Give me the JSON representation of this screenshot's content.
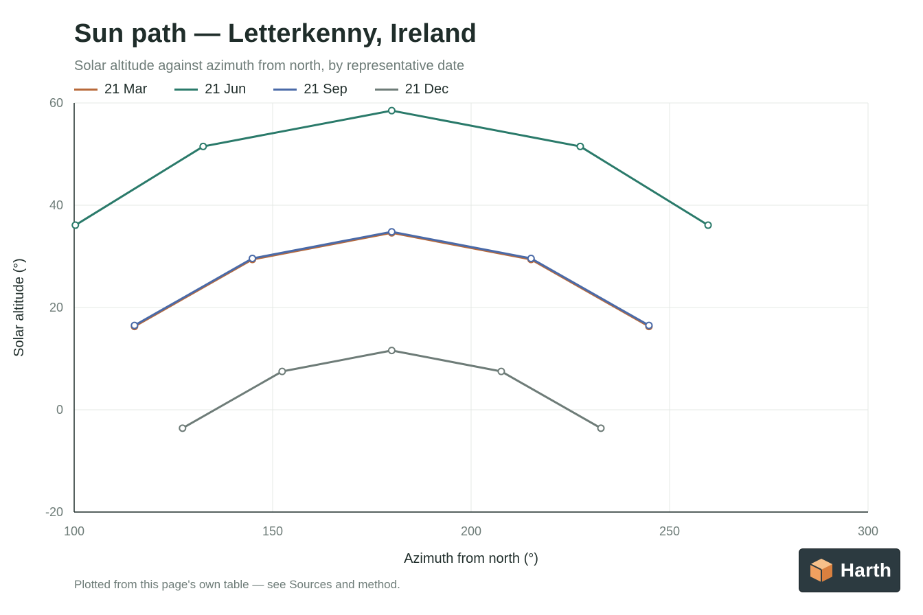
{
  "colors": {
    "mar": "#b8693a",
    "jun": "#2a7a6a",
    "sep": "#4a6aa8",
    "dec": "#6e7c78",
    "grid": "#e4e8e6",
    "axis": "#1f2d2a",
    "brand_bg": "#2c3a40",
    "brand_mark": "#f0a060"
  },
  "brand": {
    "name": "Harth",
    "icon": "cube-logo-icon"
  },
  "footnote": "Plotted from this page's own table — see Sources and method.",
  "chart_data": {
    "type": "line",
    "title": "Sun path — Letterkenny, Ireland",
    "subtitle": "Solar altitude against azimuth from north, by representative date",
    "xlabel": "Azimuth from north (°)",
    "ylabel": "Solar altitude (°)",
    "xlim": [
      100,
      300
    ],
    "ylim": [
      -20,
      60
    ],
    "xticks": [
      "100",
      "150",
      "200",
      "250",
      "300"
    ],
    "yticks": [
      "-20",
      "0",
      "20",
      "40",
      "60"
    ],
    "grid": true,
    "legend_position": "top-left",
    "series": [
      {
        "name": "21 Mar",
        "color_key": "mar",
        "x": [
          115.2,
          144.9,
          180,
          215.1,
          244.8
        ],
        "y": [
          16.3,
          29.4,
          34.6,
          29.4,
          16.3
        ]
      },
      {
        "name": "21 Jun",
        "color_key": "jun",
        "x": [
          100.3,
          132.5,
          180,
          227.5,
          259.7
        ],
        "y": [
          36.1,
          51.5,
          58.5,
          51.5,
          36.1
        ]
      },
      {
        "name": "21 Sep",
        "color_key": "sep",
        "x": [
          115.2,
          144.9,
          180,
          215.1,
          244.8
        ],
        "y": [
          16.5,
          29.6,
          34.8,
          29.6,
          16.5
        ]
      },
      {
        "name": "21 Dec",
        "color_key": "dec",
        "x": [
          127.3,
          152.4,
          180,
          207.6,
          232.7
        ],
        "y": [
          -3.6,
          7.5,
          11.6,
          7.5,
          -3.6
        ]
      }
    ]
  }
}
